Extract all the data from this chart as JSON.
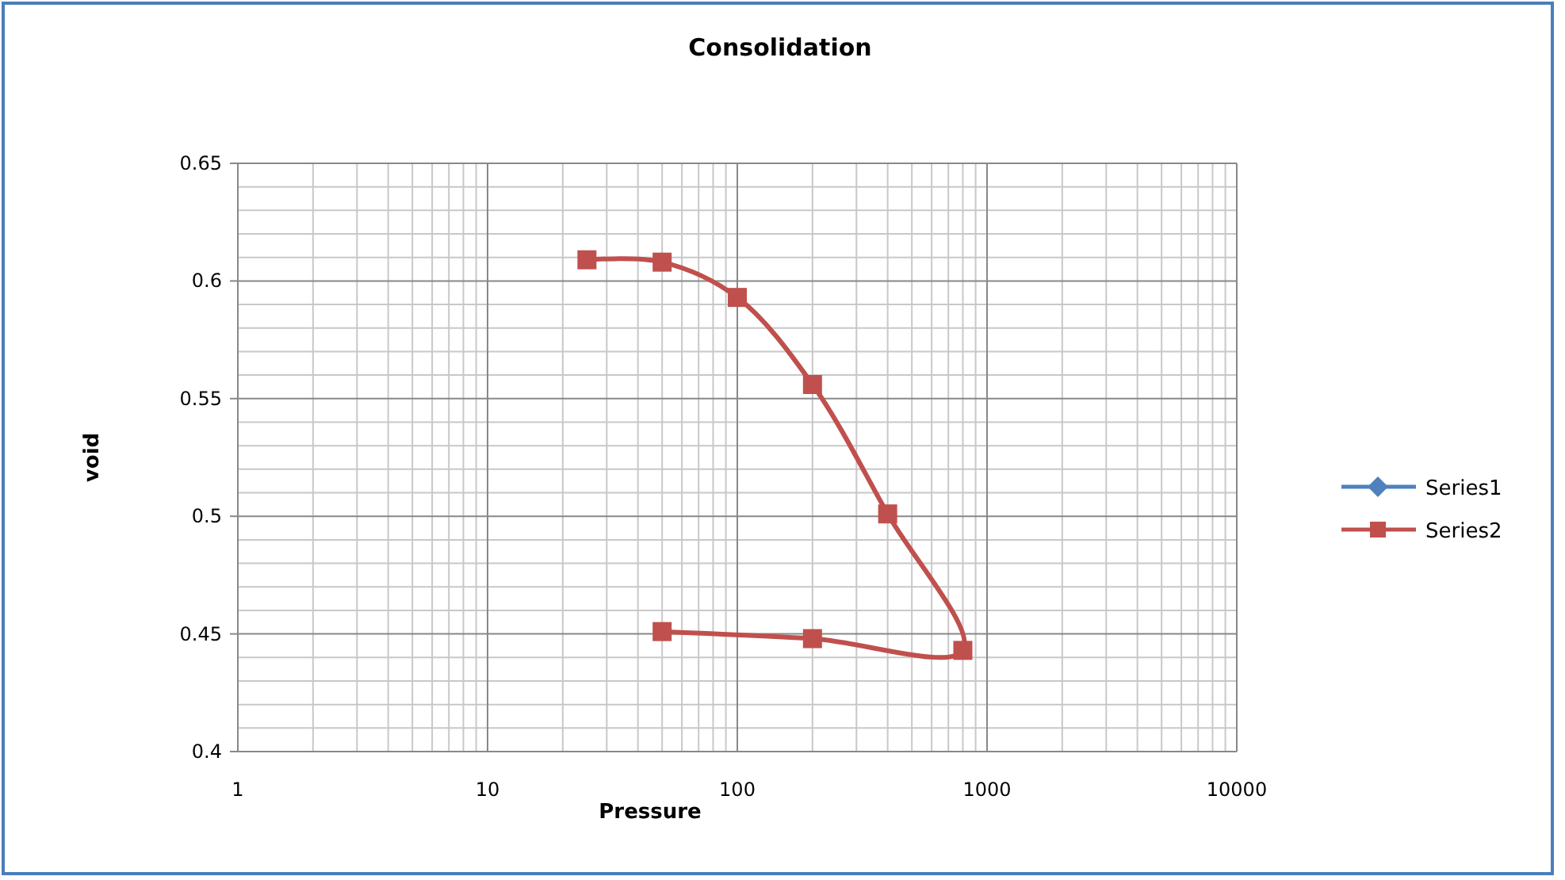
{
  "chart_data": {
    "type": "line",
    "title": "Consolidation",
    "xlabel": "Pressure",
    "ylabel": "void",
    "log": "x",
    "xlim": [
      1,
      10000
    ],
    "xticks": [
      1,
      10,
      100,
      1000,
      10000
    ],
    "ylim": [
      0.4,
      0.65
    ],
    "yticks": [
      0.4,
      0.45,
      0.5,
      0.55,
      0.6,
      0.65
    ],
    "grid": true,
    "legend": "right",
    "line_style": "solid",
    "series": [
      {
        "name": "Series1",
        "color": "#4f81bd",
        "marker": "diamond"
      },
      {
        "name": "Series2",
        "color": "#c0504d",
        "marker": "square",
        "x": [
          25,
          50,
          100,
          200,
          400,
          800,
          200,
          50
        ],
        "values": [
          0.609,
          0.608,
          0.593,
          0.556,
          0.501,
          0.443,
          0.448,
          0.451
        ]
      }
    ]
  }
}
